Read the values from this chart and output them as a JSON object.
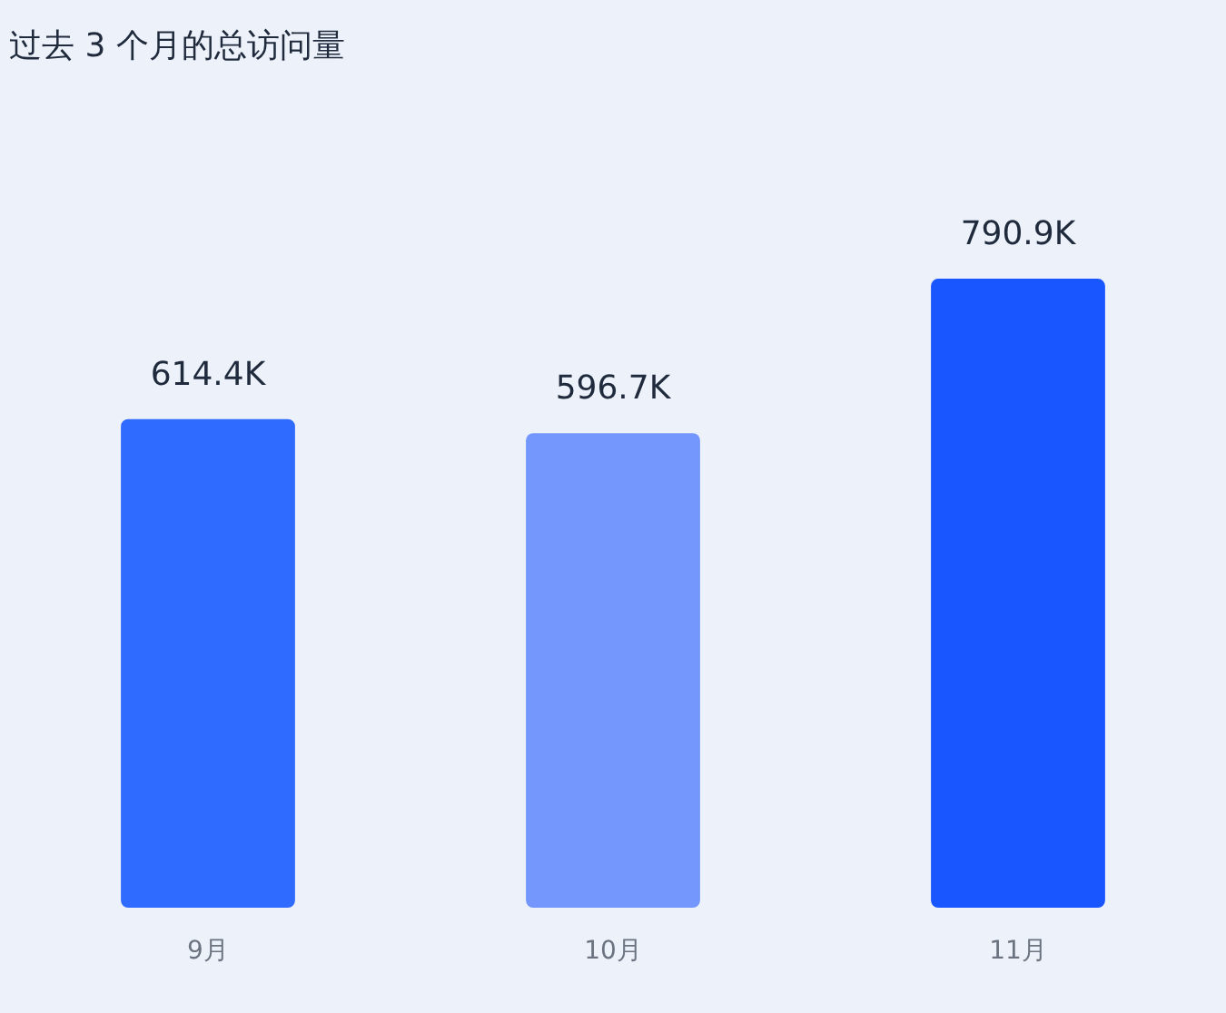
{
  "chart_data": {
    "type": "bar",
    "title": "过去 3 个月的总访问量",
    "categories": [
      "9月",
      "10月",
      "11月"
    ],
    "values": [
      614.4,
      596.7,
      790.9
    ],
    "value_labels": [
      "614.4K",
      "596.7K",
      "790.9K"
    ],
    "colors": [
      "#2f6bff",
      "#7397fd",
      "#1a56ff"
    ]
  }
}
